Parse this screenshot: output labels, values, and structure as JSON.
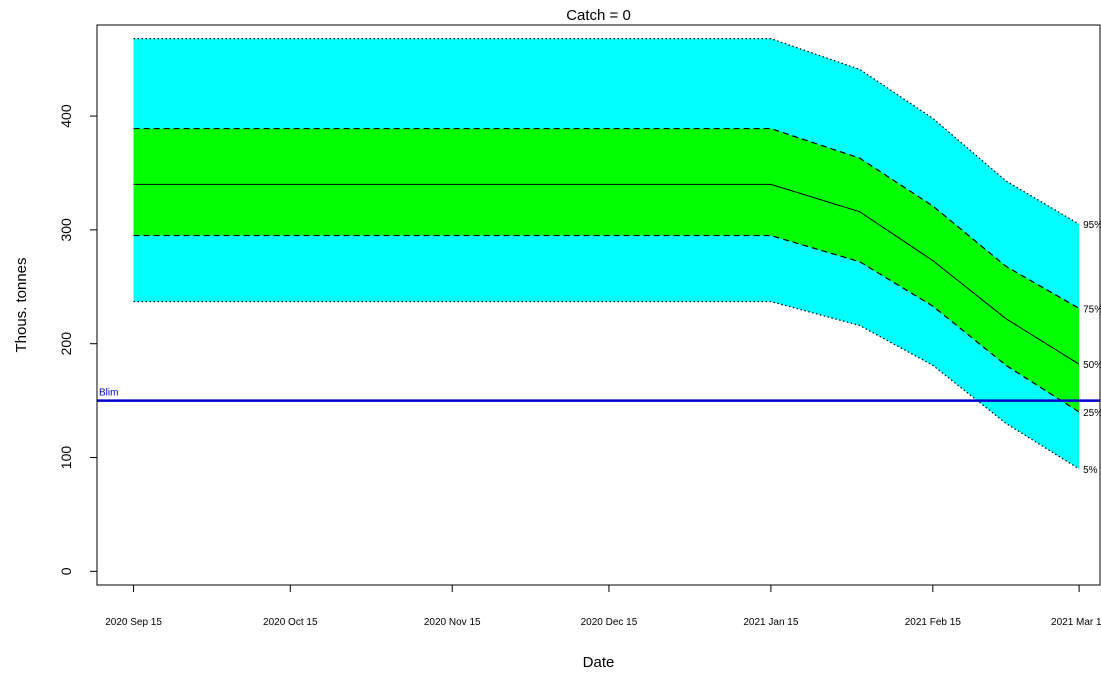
{
  "chart_data": {
    "type": "area",
    "title": "Catch = 0",
    "xlabel": "Date",
    "ylabel": "Thous. tonnes",
    "ylim": [
      -12,
      480
    ],
    "xlim": [
      "2020-09-08",
      "2021-03-19"
    ],
    "yticks": [
      0,
      100,
      200,
      300,
      400
    ],
    "xticks": [
      {
        "date": "2020-09-15",
        "label": "2020 Sep 15"
      },
      {
        "date": "2020-10-15",
        "label": "2020 Oct 15"
      },
      {
        "date": "2020-11-15",
        "label": "2020 Nov 15"
      },
      {
        "date": "2020-12-15",
        "label": "2020 Dec 15"
      },
      {
        "date": "2021-01-15",
        "label": "2021 Jan 15"
      },
      {
        "date": "2021-02-15",
        "label": "2021 Feb 15"
      },
      {
        "date": "2021-03-15",
        "label": "2021 Mar 15"
      }
    ],
    "x": [
      "2020-09-15",
      "2021-01-15",
      "2021-02-01",
      "2021-02-15",
      "2021-03-01",
      "2021-03-15"
    ],
    "series": [
      {
        "name": "5%",
        "values": [
          237,
          237,
          216,
          181,
          130,
          90
        ]
      },
      {
        "name": "25%",
        "values": [
          295,
          295,
          272,
          233,
          181,
          140
        ]
      },
      {
        "name": "50%",
        "values": [
          340,
          340,
          316,
          273,
          222,
          182
        ]
      },
      {
        "name": "75%",
        "values": [
          389,
          389,
          363,
          321,
          268,
          231
        ]
      },
      {
        "name": "95%",
        "values": [
          468,
          468,
          441,
          398,
          343,
          305
        ]
      }
    ],
    "bands": [
      {
        "lower": "5%",
        "upper": "95%",
        "color": "#00ffff"
      },
      {
        "lower": "25%",
        "upper": "75%",
        "color": "#00ff00"
      }
    ],
    "reference_line": {
      "label": "Blim",
      "value": 150,
      "color": "#0000cc"
    },
    "grid": false,
    "legend": "none"
  }
}
